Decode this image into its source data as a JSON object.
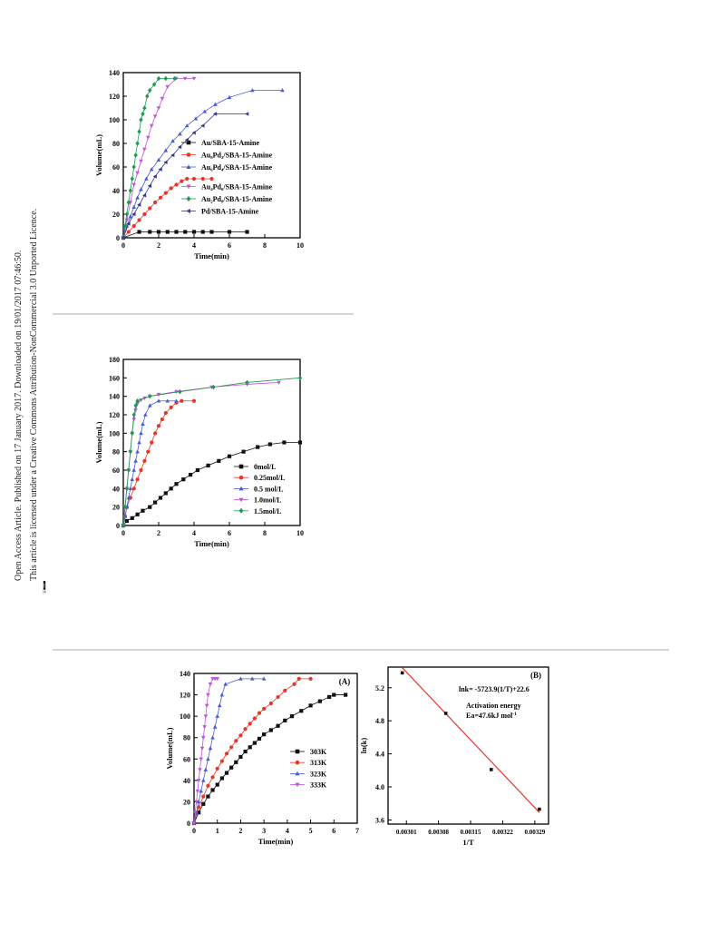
{
  "sidebar": {
    "line1": "Open Access Article. Published on 17 January 2017. Downloaded on 19/01/2017 07:46:50.",
    "line2": "This article is licensed under a Creative Commons Attribution-NonCommercial 3.0 Unported Licence.",
    "badge_cc": "cc",
    "badge_text": "BY-NC"
  },
  "colors": {
    "black": "#111111",
    "red": "#e8352b",
    "blue": "#4a5cd0",
    "magenta": "#c055d8",
    "green": "#1f9a4e",
    "navy": "#333a8a",
    "fit": "#e8352b",
    "rule": "#c8c8c0"
  },
  "chart_data": [
    {
      "type": "line",
      "xlabel": "Time(min)",
      "ylabel": "Volume(mL)",
      "xlim": [
        0,
        10
      ],
      "ylim": [
        0,
        140
      ],
      "xticks": [
        "0",
        "2",
        "4",
        "6",
        "8",
        "10"
      ],
      "yticks": [
        "0",
        "20",
        "40",
        "60",
        "80",
        "100",
        "120",
        "140"
      ],
      "legend_position": "center-right",
      "series": [
        {
          "name": "Au/SBA-15-Amine",
          "marker": "square",
          "color": "black",
          "x": [
            0,
            0.9,
            1.5,
            2,
            2.5,
            3,
            3.5,
            4,
            4.5,
            5,
            6,
            7
          ],
          "y": [
            0,
            5,
            5,
            5,
            5,
            5,
            5,
            5,
            5,
            5,
            5,
            5
          ]
        },
        {
          "name": "Au₈Pd₂/SBA-15-Amine",
          "marker": "circle",
          "color": "red",
          "x": [
            0,
            0.3,
            0.6,
            0.9,
            1.2,
            1.5,
            1.8,
            2.1,
            2.4,
            2.7,
            3.0,
            3.3,
            3.6,
            4.0,
            4.5,
            5.0
          ],
          "y": [
            0,
            5,
            10,
            15,
            20,
            25,
            30,
            34,
            38,
            42,
            45,
            48,
            50,
            50,
            50,
            50
          ]
        },
        {
          "name": "Au₆Pd₄/SBA-15-Amine",
          "marker": "triangle-up",
          "color": "blue",
          "x": [
            0,
            0.2,
            0.4,
            0.6,
            0.8,
            1.0,
            1.3,
            1.6,
            2.0,
            2.4,
            2.8,
            3.2,
            3.6,
            4.1,
            4.6,
            5.2,
            6.0,
            7.3,
            9.0
          ],
          "y": [
            0,
            10,
            18,
            26,
            34,
            41,
            50,
            58,
            66,
            74,
            82,
            88,
            95,
            101,
            107,
            113,
            119,
            125,
            125
          ]
        },
        {
          "name": "Au₄Pd₆/SBA-15-Amine",
          "marker": "triangle-down",
          "color": "magenta",
          "x": [
            0,
            0.2,
            0.4,
            0.6,
            0.8,
            1.0,
            1.2,
            1.4,
            1.6,
            1.8,
            2.0,
            2.2,
            2.5,
            3.0,
            3.5,
            4.0
          ],
          "y": [
            0,
            15,
            30,
            45,
            55,
            65,
            75,
            85,
            95,
            103,
            110,
            118,
            128,
            135,
            135,
            135
          ]
        },
        {
          "name": "Au₂Pd₈/SBA-15-Amine",
          "marker": "diamond",
          "color": "green",
          "x": [
            0,
            0.1,
            0.2,
            0.3,
            0.4,
            0.5,
            0.6,
            0.7,
            0.8,
            0.9,
            1.0,
            1.1,
            1.2,
            1.35,
            1.5,
            1.75,
            2.0,
            2.4,
            2.9
          ],
          "y": [
            0,
            10,
            20,
            30,
            40,
            50,
            60,
            70,
            80,
            90,
            100,
            105,
            110,
            120,
            125,
            130,
            135,
            135,
            135
          ]
        },
        {
          "name": "Pd/SBA-15-Amine",
          "marker": "triangle-left",
          "color": "navy",
          "x": [
            0,
            0.3,
            0.6,
            0.9,
            1.2,
            1.5,
            1.8,
            2.1,
            2.4,
            2.8,
            3.2,
            3.6,
            4.0,
            4.5,
            5.2,
            7.0
          ],
          "y": [
            0,
            12,
            20,
            28,
            36,
            44,
            52,
            58,
            64,
            70,
            77,
            83,
            89,
            95,
            105,
            105
          ]
        }
      ]
    },
    {
      "type": "line",
      "xlabel": "Time(min)",
      "ylabel": "Volume(mL)",
      "xlim": [
        0,
        10
      ],
      "ylim": [
        0,
        180
      ],
      "xticks": [
        "0",
        "2",
        "4",
        "6",
        "8",
        "10"
      ],
      "yticks": [
        "0",
        "20",
        "40",
        "60",
        "80",
        "100",
        "120",
        "140",
        "160",
        "180"
      ],
      "legend_position": "center-right",
      "series": [
        {
          "name": "0mol/L",
          "marker": "square",
          "color": "black",
          "x": [
            0,
            0.2,
            0.5,
            0.8,
            1.1,
            1.5,
            1.8,
            2.1,
            2.4,
            2.7,
            3.0,
            3.4,
            3.8,
            4.2,
            4.8,
            5.4,
            6.0,
            6.8,
            7.6,
            8.3,
            9.1,
            10.0
          ],
          "y": [
            0,
            5,
            8,
            12,
            16,
            20,
            25,
            30,
            35,
            40,
            45,
            50,
            55,
            60,
            65,
            70,
            75,
            80,
            85,
            88,
            90,
            90
          ]
        },
        {
          "name": "0.25mol/L",
          "marker": "circle",
          "color": "red",
          "x": [
            0,
            0.1,
            0.2,
            0.4,
            0.6,
            0.8,
            1.0,
            1.2,
            1.4,
            1.6,
            1.8,
            2.0,
            2.2,
            2.4,
            2.7,
            3.0,
            3.3,
            4.0
          ],
          "y": [
            0,
            10,
            20,
            30,
            40,
            50,
            60,
            70,
            80,
            90,
            100,
            108,
            115,
            122,
            128,
            133,
            135,
            135
          ]
        },
        {
          "name": "0.5 mol/L",
          "marker": "triangle-up",
          "color": "blue",
          "x": [
            0,
            0.1,
            0.2,
            0.3,
            0.4,
            0.5,
            0.6,
            0.7,
            0.8,
            0.9,
            1.0,
            1.1,
            1.25,
            1.5,
            2.0,
            2.5,
            3.0
          ],
          "y": [
            0,
            10,
            20,
            30,
            40,
            50,
            60,
            70,
            80,
            90,
            100,
            110,
            120,
            130,
            135,
            135,
            135
          ]
        },
        {
          "name": "1.0mol/L",
          "marker": "triangle-down",
          "color": "magenta",
          "x": [
            0,
            0.1,
            0.2,
            0.3,
            0.4,
            0.5,
            0.6,
            0.7,
            0.8,
            1.0,
            1.2,
            1.5,
            2.0,
            3.0,
            5.0,
            7.0,
            8.8
          ],
          "y": [
            0,
            20,
            40,
            60,
            80,
            100,
            115,
            125,
            132,
            136,
            138,
            140,
            142,
            145,
            150,
            153,
            155
          ]
        },
        {
          "name": "1.5mol/L",
          "marker": "diamond",
          "color": "green",
          "x": [
            0,
            0.1,
            0.2,
            0.3,
            0.4,
            0.5,
            0.6,
            0.7,
            0.8,
            1.5,
            3.2,
            5.1,
            7.0,
            10.0
          ],
          "y": [
            0,
            20,
            40,
            60,
            80,
            100,
            120,
            130,
            135,
            140,
            145,
            150,
            155,
            160
          ]
        }
      ]
    },
    {
      "type": "line",
      "panel_label": "(A)",
      "xlabel": "Time(min)",
      "ylabel": "Volume(mL)",
      "xlim": [
        0,
        7
      ],
      "ylim": [
        0,
        140
      ],
      "xticks": [
        "0",
        "1",
        "2",
        "3",
        "4",
        "5",
        "6",
        "7"
      ],
      "yticks": [
        "0",
        "20",
        "40",
        "60",
        "80",
        "100",
        "120",
        "140"
      ],
      "legend_position": "center-right",
      "series": [
        {
          "name": "303K",
          "marker": "square",
          "color": "black",
          "x": [
            0,
            0.2,
            0.4,
            0.6,
            0.8,
            1.0,
            1.2,
            1.4,
            1.6,
            1.8,
            2.0,
            2.2,
            2.4,
            2.6,
            2.8,
            3.0,
            3.3,
            3.6,
            3.9,
            4.2,
            4.6,
            5.0,
            5.4,
            5.8,
            6.0,
            6.5
          ],
          "y": [
            0,
            10,
            18,
            25,
            31,
            36,
            42,
            47,
            52,
            57,
            62,
            67,
            71,
            75,
            79,
            83,
            87,
            91,
            96,
            100,
            105,
            110,
            114,
            118,
            120,
            120
          ]
        },
        {
          "name": "313K",
          "marker": "circle",
          "color": "red",
          "x": [
            0,
            0.2,
            0.4,
            0.6,
            0.8,
            1.0,
            1.2,
            1.4,
            1.6,
            1.8,
            2.0,
            2.2,
            2.4,
            2.6,
            2.8,
            3.0,
            3.3,
            3.6,
            3.9,
            4.3,
            4.5,
            5.0
          ],
          "y": [
            0,
            15,
            25,
            35,
            43,
            51,
            58,
            65,
            71,
            77,
            82,
            88,
            93,
            98,
            103,
            107,
            112,
            118,
            124,
            130,
            135,
            135
          ]
        },
        {
          "name": "323K",
          "marker": "triangle-up",
          "color": "blue",
          "x": [
            0,
            0.1,
            0.2,
            0.3,
            0.4,
            0.5,
            0.6,
            0.7,
            0.8,
            0.9,
            1.0,
            1.1,
            1.2,
            1.35,
            2.0,
            2.5,
            3.0
          ],
          "y": [
            0,
            10,
            20,
            30,
            40,
            50,
            60,
            70,
            80,
            90,
            100,
            110,
            120,
            130,
            135,
            135,
            135
          ]
        },
        {
          "name": "333K",
          "marker": "triangle-down",
          "color": "magenta",
          "x": [
            0,
            0.05,
            0.1,
            0.15,
            0.2,
            0.25,
            0.3,
            0.35,
            0.4,
            0.45,
            0.5,
            0.55,
            0.6,
            0.7,
            0.8,
            0.9,
            1.0
          ],
          "y": [
            0,
            10,
            20,
            30,
            40,
            50,
            60,
            70,
            80,
            90,
            100,
            110,
            120,
            130,
            135,
            135,
            135
          ]
        }
      ]
    },
    {
      "type": "scatter",
      "panel_label": "(B)",
      "xlabel": "1/T",
      "ylabel": "ln(k)",
      "xlim": [
        0.00297,
        0.00332
      ],
      "ylim": [
        3.55,
        5.45
      ],
      "xticks": [
        "0.00301",
        "0.00308",
        "0.00315",
        "0.00322",
        "0.00329"
      ],
      "yticks": [
        "3.6",
        "4.0",
        "4.4",
        "4.8",
        "5.2"
      ],
      "equation": "lnk= -5723.9(1/T)+22.6",
      "annotation_line1": "Activation energy",
      "annotation_line2": "Ea=47.6kJ mol",
      "annotation_sup": "-1",
      "points": {
        "x": [
          0.003001,
          0.003096,
          0.003195,
          0.0033
        ],
        "y": [
          5.38,
          4.89,
          4.21,
          3.73
        ]
      },
      "fit": {
        "slope": -5723.9,
        "intercept": 22.6
      }
    }
  ]
}
